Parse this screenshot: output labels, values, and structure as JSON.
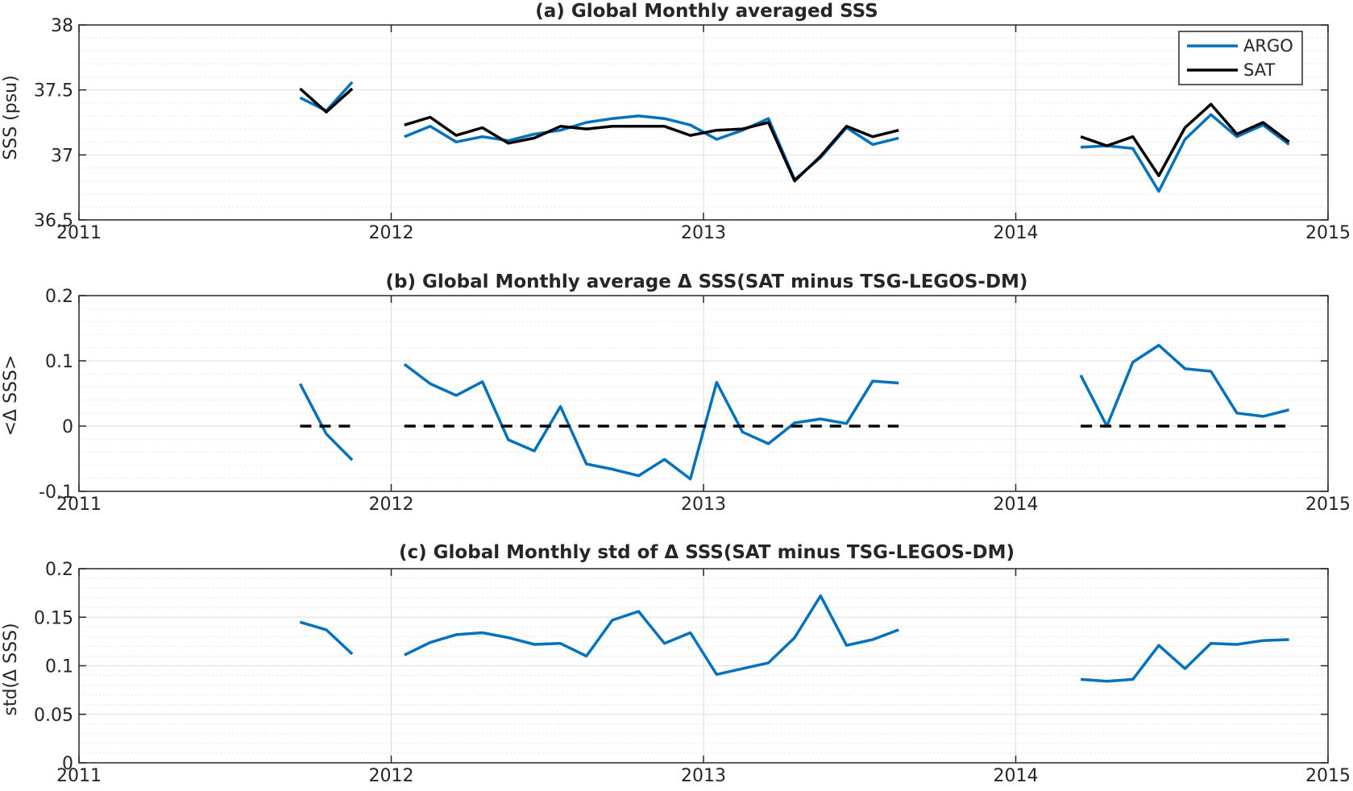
{
  "chart_data": [
    {
      "type": "line",
      "title": "(a) Global Monthly averaged SSS",
      "xlabel": "",
      "ylabel": "SSS (psu)",
      "xlim": [
        2011,
        2015
      ],
      "ylim": [
        36.5,
        38
      ],
      "x_ticks": [
        2011,
        2012,
        2013,
        2014,
        2015
      ],
      "x_tick_labels": [
        "2011",
        "2012",
        "2013",
        "2014",
        "2015"
      ],
      "y_ticks": [
        36.5,
        37,
        37.5,
        38
      ],
      "y_tick_labels": [
        "36.5",
        "37",
        "37.5",
        "38"
      ],
      "grid": true,
      "legend": "top-right",
      "series": [
        {
          "name": "ARGO",
          "color": "#0072BD",
          "segments": [
            [
              [
                2011.708,
                37.44
              ],
              [
                2011.792,
                37.34
              ],
              [
                2011.875,
                37.56
              ]
            ],
            [
              [
                2012.042,
                37.14
              ],
              [
                2012.125,
                37.22
              ],
              [
                2012.208,
                37.1
              ],
              [
                2012.292,
                37.14
              ],
              [
                2012.375,
                37.11
              ],
              [
                2012.458,
                37.16
              ],
              [
                2012.542,
                37.19
              ],
              [
                2012.625,
                37.25
              ],
              [
                2012.708,
                37.28
              ],
              [
                2012.792,
                37.3
              ],
              [
                2012.875,
                37.28
              ],
              [
                2012.958,
                37.23
              ],
              [
                2013.042,
                37.12
              ],
              [
                2013.125,
                37.19
              ],
              [
                2013.208,
                37.28
              ],
              [
                2013.292,
                36.81
              ],
              [
                2013.375,
                36.98
              ],
              [
                2013.458,
                37.21
              ],
              [
                2013.542,
                37.08
              ],
              [
                2013.625,
                37.13
              ]
            ],
            [
              [
                2014.208,
                37.06
              ],
              [
                2014.292,
                37.07
              ],
              [
                2014.375,
                37.05
              ],
              [
                2014.458,
                36.72
              ],
              [
                2014.542,
                37.12
              ],
              [
                2014.625,
                37.31
              ],
              [
                2014.708,
                37.14
              ],
              [
                2014.792,
                37.23
              ],
              [
                2014.875,
                37.08
              ]
            ]
          ]
        },
        {
          "name": "SAT",
          "color": "#000000",
          "segments": [
            [
              [
                2011.708,
                37.51
              ],
              [
                2011.792,
                37.33
              ],
              [
                2011.875,
                37.51
              ]
            ],
            [
              [
                2012.042,
                37.23
              ],
              [
                2012.125,
                37.29
              ],
              [
                2012.208,
                37.15
              ],
              [
                2012.292,
                37.21
              ],
              [
                2012.375,
                37.09
              ],
              [
                2012.458,
                37.13
              ],
              [
                2012.542,
                37.22
              ],
              [
                2012.625,
                37.2
              ],
              [
                2012.708,
                37.22
              ],
              [
                2012.792,
                37.22
              ],
              [
                2012.875,
                37.22
              ],
              [
                2012.958,
                37.15
              ],
              [
                2013.042,
                37.19
              ],
              [
                2013.125,
                37.2
              ],
              [
                2013.208,
                37.25
              ],
              [
                2013.292,
                36.8
              ],
              [
                2013.375,
                36.99
              ],
              [
                2013.458,
                37.22
              ],
              [
                2013.542,
                37.14
              ],
              [
                2013.625,
                37.19
              ]
            ],
            [
              [
                2014.208,
                37.14
              ],
              [
                2014.292,
                37.07
              ],
              [
                2014.375,
                37.14
              ],
              [
                2014.458,
                36.84
              ],
              [
                2014.542,
                37.21
              ],
              [
                2014.625,
                37.39
              ],
              [
                2014.708,
                37.16
              ],
              [
                2014.792,
                37.25
              ],
              [
                2014.875,
                37.1
              ]
            ]
          ]
        }
      ]
    },
    {
      "type": "line",
      "title": "(b) Global Monthly average Δ SSS(SAT minus TSG-LEGOS-DM)",
      "xlabel": "",
      "ylabel": "<Δ SSS>",
      "xlim": [
        2011,
        2015
      ],
      "ylim": [
        -0.1,
        0.2
      ],
      "x_ticks": [
        2011,
        2012,
        2013,
        2014,
        2015
      ],
      "x_tick_labels": [
        "2011",
        "2012",
        "2013",
        "2014",
        "2015"
      ],
      "y_ticks": [
        -0.1,
        0,
        0.1,
        0.2
      ],
      "y_tick_labels": [
        "-0.1",
        "0",
        "0.1",
        "0.2"
      ],
      "grid": true,
      "series": [
        {
          "color": "#0072BD",
          "segments": [
            [
              [
                2011.708,
                0.065
              ],
              [
                2011.792,
                -0.012
              ],
              [
                2011.875,
                -0.052
              ]
            ],
            [
              [
                2012.042,
                0.095
              ],
              [
                2012.125,
                0.065
              ],
              [
                2012.208,
                0.047
              ],
              [
                2012.292,
                0.068
              ],
              [
                2012.375,
                -0.021
              ],
              [
                2012.458,
                -0.038
              ],
              [
                2012.542,
                0.03
              ],
              [
                2012.625,
                -0.058
              ],
              [
                2012.708,
                -0.066
              ],
              [
                2012.792,
                -0.076
              ],
              [
                2012.875,
                -0.051
              ],
              [
                2012.958,
                -0.081
              ],
              [
                2013.042,
                0.067
              ],
              [
                2013.125,
                -0.009
              ],
              [
                2013.208,
                -0.027
              ],
              [
                2013.292,
                0.005
              ],
              [
                2013.375,
                0.011
              ],
              [
                2013.458,
                0.004
              ],
              [
                2013.542,
                0.069
              ],
              [
                2013.625,
                0.066
              ]
            ],
            [
              [
                2014.208,
                0.078
              ],
              [
                2014.292,
                0.0
              ],
              [
                2014.375,
                0.098
              ],
              [
                2014.458,
                0.124
              ],
              [
                2014.542,
                0.088
              ],
              [
                2014.625,
                0.084
              ],
              [
                2014.708,
                0.02
              ],
              [
                2014.792,
                0.015
              ],
              [
                2014.875,
                0.025
              ]
            ]
          ]
        },
        {
          "color": "#000000",
          "dashed": true,
          "segments": [
            [
              [
                2011.708,
                0
              ],
              [
                2011.875,
                0
              ]
            ],
            [
              [
                2012.042,
                0
              ],
              [
                2013.625,
                0
              ]
            ],
            [
              [
                2014.208,
                0
              ],
              [
                2014.875,
                0
              ]
            ]
          ]
        }
      ]
    },
    {
      "type": "line",
      "title": "(c) Global Monthly std of Δ SSS(SAT minus TSG-LEGOS-DM)",
      "xlabel": "",
      "ylabel": "std(Δ SSS)",
      "xlim": [
        2011,
        2015
      ],
      "ylim": [
        0,
        0.2
      ],
      "x_ticks": [
        2011,
        2012,
        2013,
        2014,
        2015
      ],
      "x_tick_labels": [
        "2011",
        "2012",
        "2013",
        "2014",
        "2015"
      ],
      "y_ticks": [
        0,
        0.05,
        0.1,
        0.15,
        0.2
      ],
      "y_tick_labels": [
        "0",
        "0.05",
        "0.1",
        "0.15",
        "0.2"
      ],
      "grid": true,
      "series": [
        {
          "color": "#0072BD",
          "segments": [
            [
              [
                2011.708,
                0.145
              ],
              [
                2011.792,
                0.137
              ],
              [
                2011.875,
                0.112
              ]
            ],
            [
              [
                2012.042,
                0.111
              ],
              [
                2012.125,
                0.124
              ],
              [
                2012.208,
                0.132
              ],
              [
                2012.292,
                0.134
              ],
              [
                2012.375,
                0.129
              ],
              [
                2012.458,
                0.122
              ],
              [
                2012.542,
                0.123
              ],
              [
                2012.625,
                0.11
              ],
              [
                2012.708,
                0.147
              ],
              [
                2012.792,
                0.156
              ],
              [
                2012.875,
                0.123
              ],
              [
                2012.958,
                0.134
              ],
              [
                2013.042,
                0.091
              ],
              [
                2013.125,
                0.097
              ],
              [
                2013.208,
                0.103
              ],
              [
                2013.292,
                0.129
              ],
              [
                2013.375,
                0.172
              ],
              [
                2013.458,
                0.121
              ],
              [
                2013.542,
                0.127
              ],
              [
                2013.625,
                0.137
              ]
            ],
            [
              [
                2014.208,
                0.086
              ],
              [
                2014.292,
                0.084
              ],
              [
                2014.375,
                0.086
              ],
              [
                2014.458,
                0.121
              ],
              [
                2014.542,
                0.097
              ],
              [
                2014.625,
                0.123
              ],
              [
                2014.708,
                0.122
              ],
              [
                2014.792,
                0.126
              ],
              [
                2014.875,
                0.127
              ]
            ]
          ]
        }
      ]
    }
  ]
}
